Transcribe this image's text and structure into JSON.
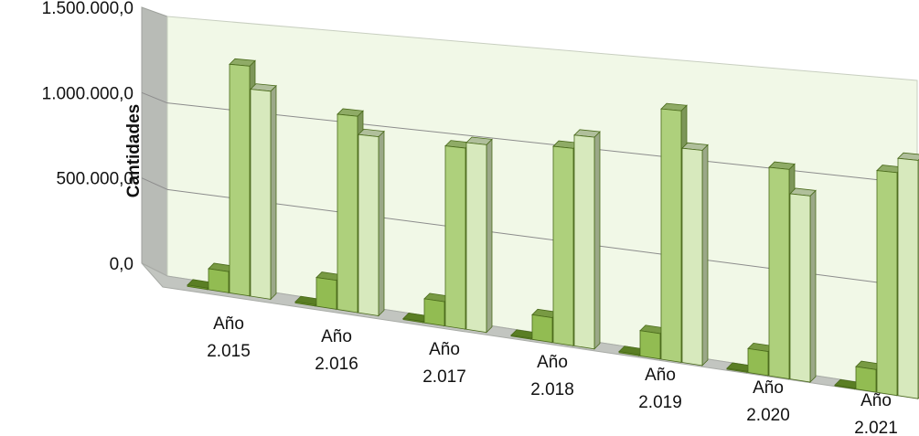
{
  "chart_data": {
    "type": "bar",
    "view": "3d-perspective-clustered-columns",
    "title": "",
    "xlabel": "",
    "ylabel": "Cantidades",
    "ylim": [
      0,
      1500000
    ],
    "yticks": [
      "0,0",
      "500.000,0",
      "1.000.000,0",
      "1.500.000,0"
    ],
    "grid": true,
    "legend": "none",
    "categories": [
      "Año 2.015",
      "Año 2.016",
      "Año 2.017",
      "Año 2.018",
      "Año 2.019",
      "Año 2.020",
      "Año 2.021"
    ],
    "series": [
      {
        "values": [
          8000,
          7000,
          6000,
          5000,
          6000,
          5000,
          4000
        ],
        "color": "#6e9a2c"
      },
      {
        "values": [
          120000,
          160000,
          130000,
          130000,
          130000,
          120000,
          110000
        ],
        "color": "#92bc52"
      },
      {
        "values": [
          1300000,
          1080000,
          970000,
          1030000,
          1280000,
          1040000,
          1080000
        ],
        "color": "#aed07c"
      },
      {
        "values": [
          1170000,
          980000,
          1000000,
          1100000,
          1090000,
          920000,
          1150000
        ],
        "color": "#d7e9bd"
      }
    ],
    "colors": {
      "wall": "#f1f8e7",
      "floor": "#c2c5c0",
      "side_wall": "#b8bbb6",
      "grid": "#8c8c8c",
      "outline": "#4a6a1b"
    }
  }
}
